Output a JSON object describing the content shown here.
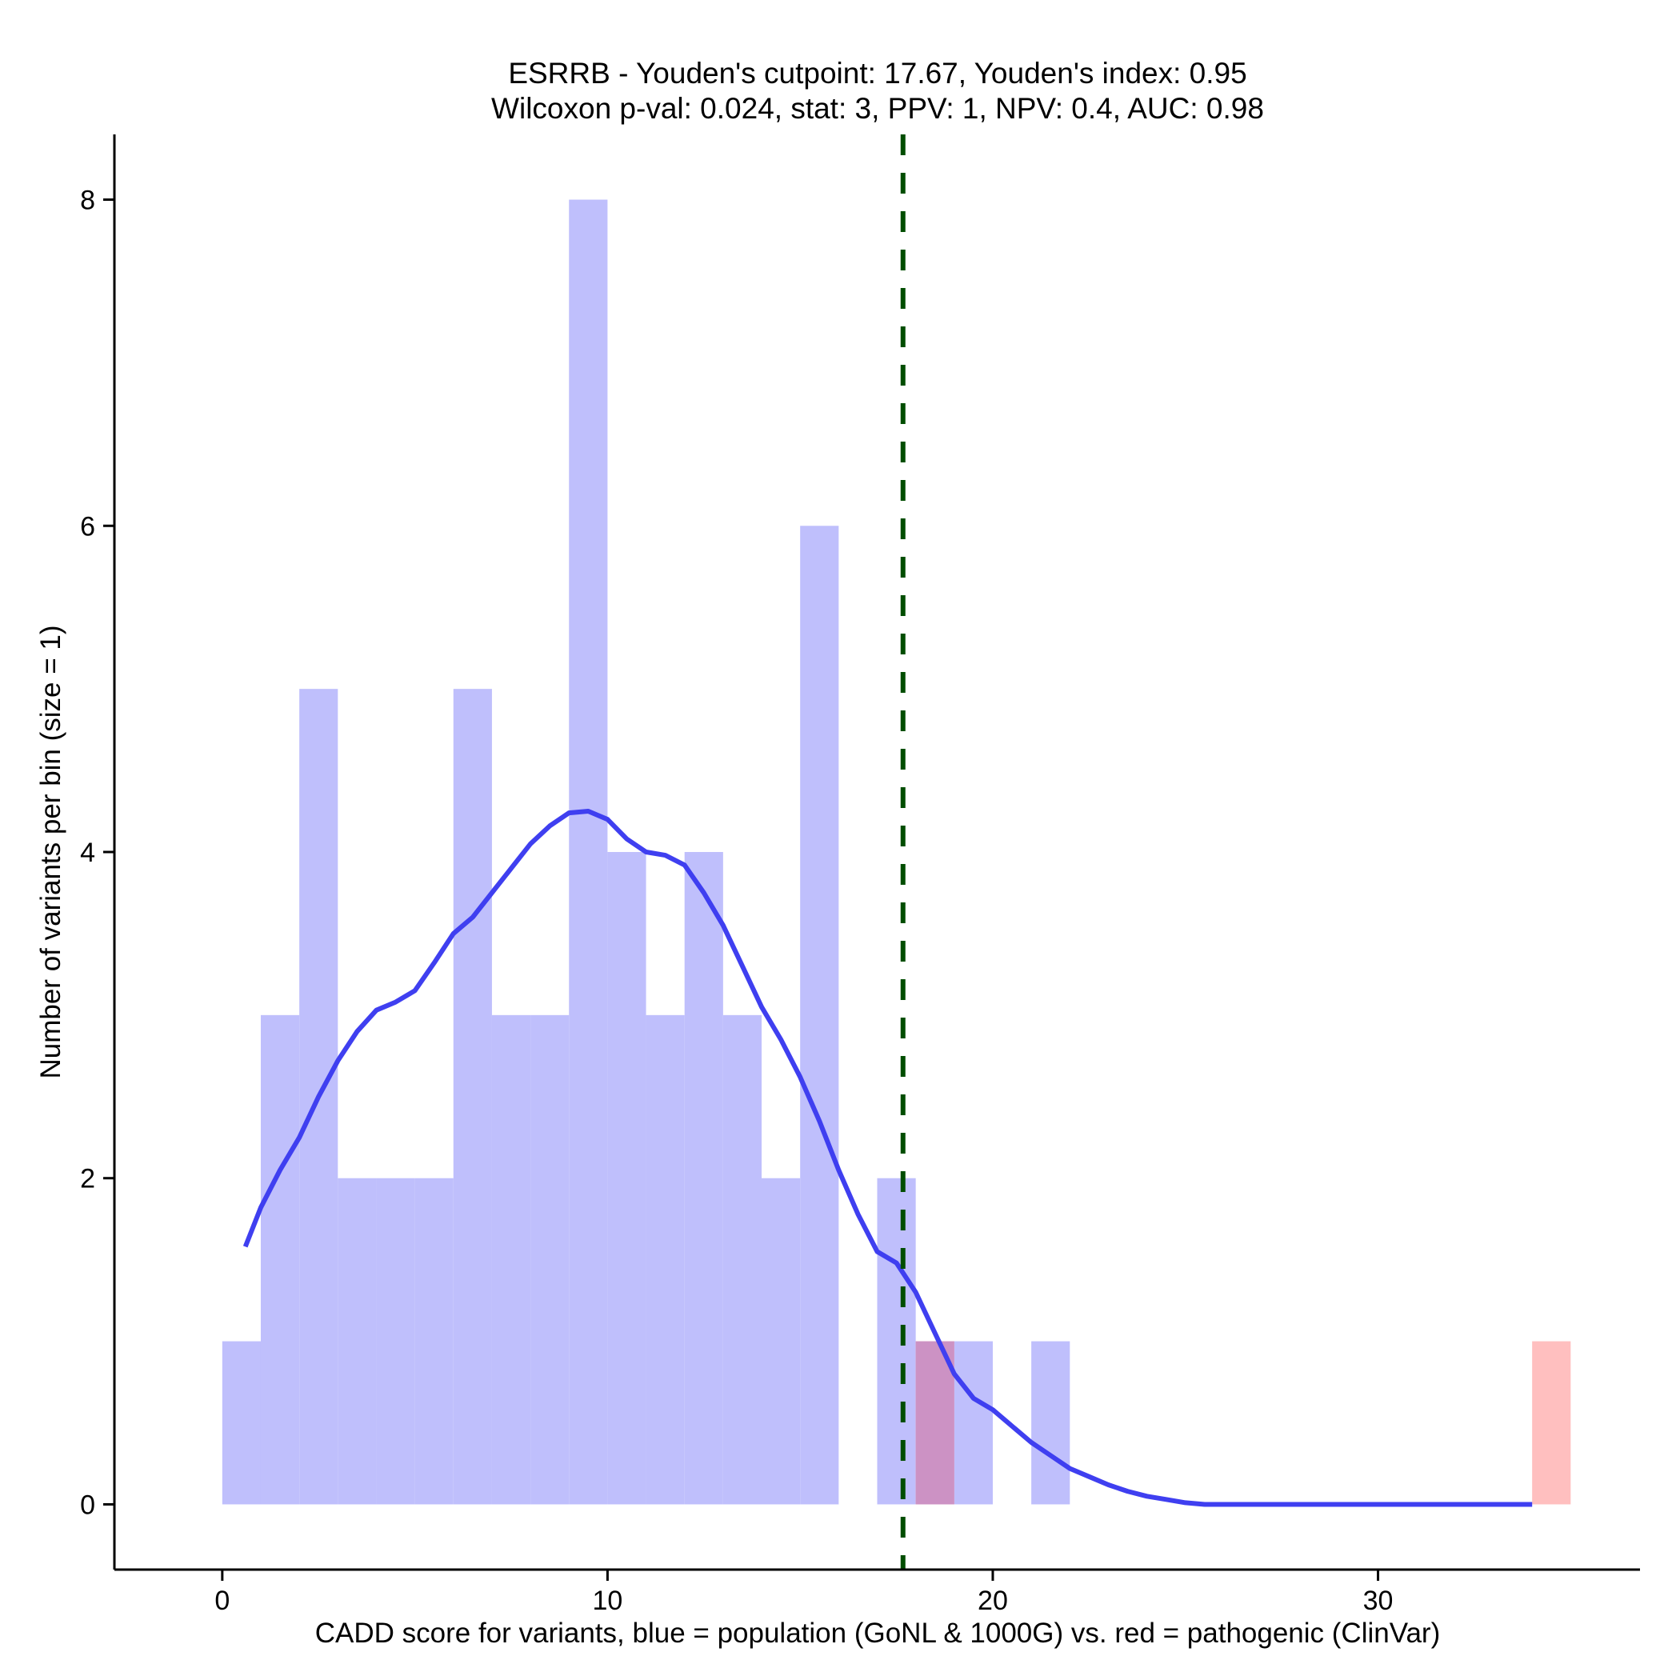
{
  "chart_data": {
    "type": "bar",
    "title_line1": "ESRRB - Youden's cutpoint: 17.67, Youden's index: 0.95",
    "title_line2": "Wilcoxon p-val: 0.024, stat: 3, PPV: 1, NPV: 0.4, AUC: 0.98",
    "xlabel": "CADD score for variants, blue = population (GoNL & 1000G) vs. red = pathogenic (ClinVar)",
    "ylabel": "Number of variants per bin (size = 1)",
    "xlim": [
      -2.8,
      36.8
    ],
    "ylim": [
      -0.4,
      8.4
    ],
    "x_ticks": [
      0,
      10,
      20,
      30
    ],
    "y_ticks": [
      0,
      2,
      4,
      6,
      8
    ],
    "bin_width": 1,
    "cutpoint": 17.67,
    "colors": {
      "population": "#bfbffc",
      "pathogenic": "#ffbfbf",
      "overlap": "#cc92c4",
      "density": "#3f3ff0",
      "cutpoint": "#004d00"
    },
    "series": [
      {
        "key": "population",
        "bins": [
          {
            "x0": 0,
            "count": 1
          },
          {
            "x0": 1,
            "count": 3
          },
          {
            "x0": 2,
            "count": 5
          },
          {
            "x0": 3,
            "count": 2
          },
          {
            "x0": 4,
            "count": 2
          },
          {
            "x0": 5,
            "count": 2
          },
          {
            "x0": 6,
            "count": 5
          },
          {
            "x0": 7,
            "count": 3
          },
          {
            "x0": 8,
            "count": 3
          },
          {
            "x0": 9,
            "count": 8
          },
          {
            "x0": 10,
            "count": 4
          },
          {
            "x0": 11,
            "count": 3
          },
          {
            "x0": 12,
            "count": 4
          },
          {
            "x0": 13,
            "count": 3
          },
          {
            "x0": 14,
            "count": 2
          },
          {
            "x0": 15,
            "count": 6
          },
          {
            "x0": 17,
            "count": 2
          },
          {
            "x0": 18,
            "count": 1
          },
          {
            "x0": 19,
            "count": 1
          },
          {
            "x0": 21,
            "count": 1
          }
        ]
      },
      {
        "key": "pathogenic",
        "bins": [
          {
            "x0": 18,
            "count": 1
          },
          {
            "x0": 34,
            "count": 1
          }
        ]
      }
    ],
    "density_curve": {
      "x": [
        0.6,
        1.0,
        1.5,
        2.0,
        2.5,
        3.0,
        3.5,
        4.0,
        4.5,
        5.0,
        5.5,
        6.0,
        6.5,
        7.0,
        7.5,
        8.0,
        8.5,
        9.0,
        9.5,
        10.0,
        10.5,
        11.0,
        11.5,
        12.0,
        12.5,
        13.0,
        13.5,
        14.0,
        14.5,
        15.0,
        15.5,
        16.0,
        16.5,
        17.0,
        17.5,
        18.0,
        18.5,
        19.0,
        19.5,
        20.0,
        20.5,
        21.0,
        21.5,
        22.0,
        22.5,
        23.0,
        23.5,
        24.0,
        24.5,
        25.0,
        25.5,
        26.0,
        27.0,
        28.0,
        30.0,
        32.0,
        34.0
      ],
      "y": [
        1.58,
        1.82,
        2.05,
        2.25,
        2.5,
        2.72,
        2.9,
        3.03,
        3.08,
        3.15,
        3.32,
        3.5,
        3.6,
        3.75,
        3.9,
        4.05,
        4.16,
        4.24,
        4.25,
        4.2,
        4.08,
        4.0,
        3.98,
        3.92,
        3.75,
        3.55,
        3.3,
        3.05,
        2.85,
        2.62,
        2.35,
        2.05,
        1.78,
        1.55,
        1.48,
        1.3,
        1.05,
        0.8,
        0.65,
        0.58,
        0.48,
        0.38,
        0.3,
        0.22,
        0.17,
        0.12,
        0.08,
        0.05,
        0.03,
        0.01,
        0.0,
        0.0,
        0.0,
        0.0,
        0.0,
        0.0,
        0.0
      ]
    }
  }
}
